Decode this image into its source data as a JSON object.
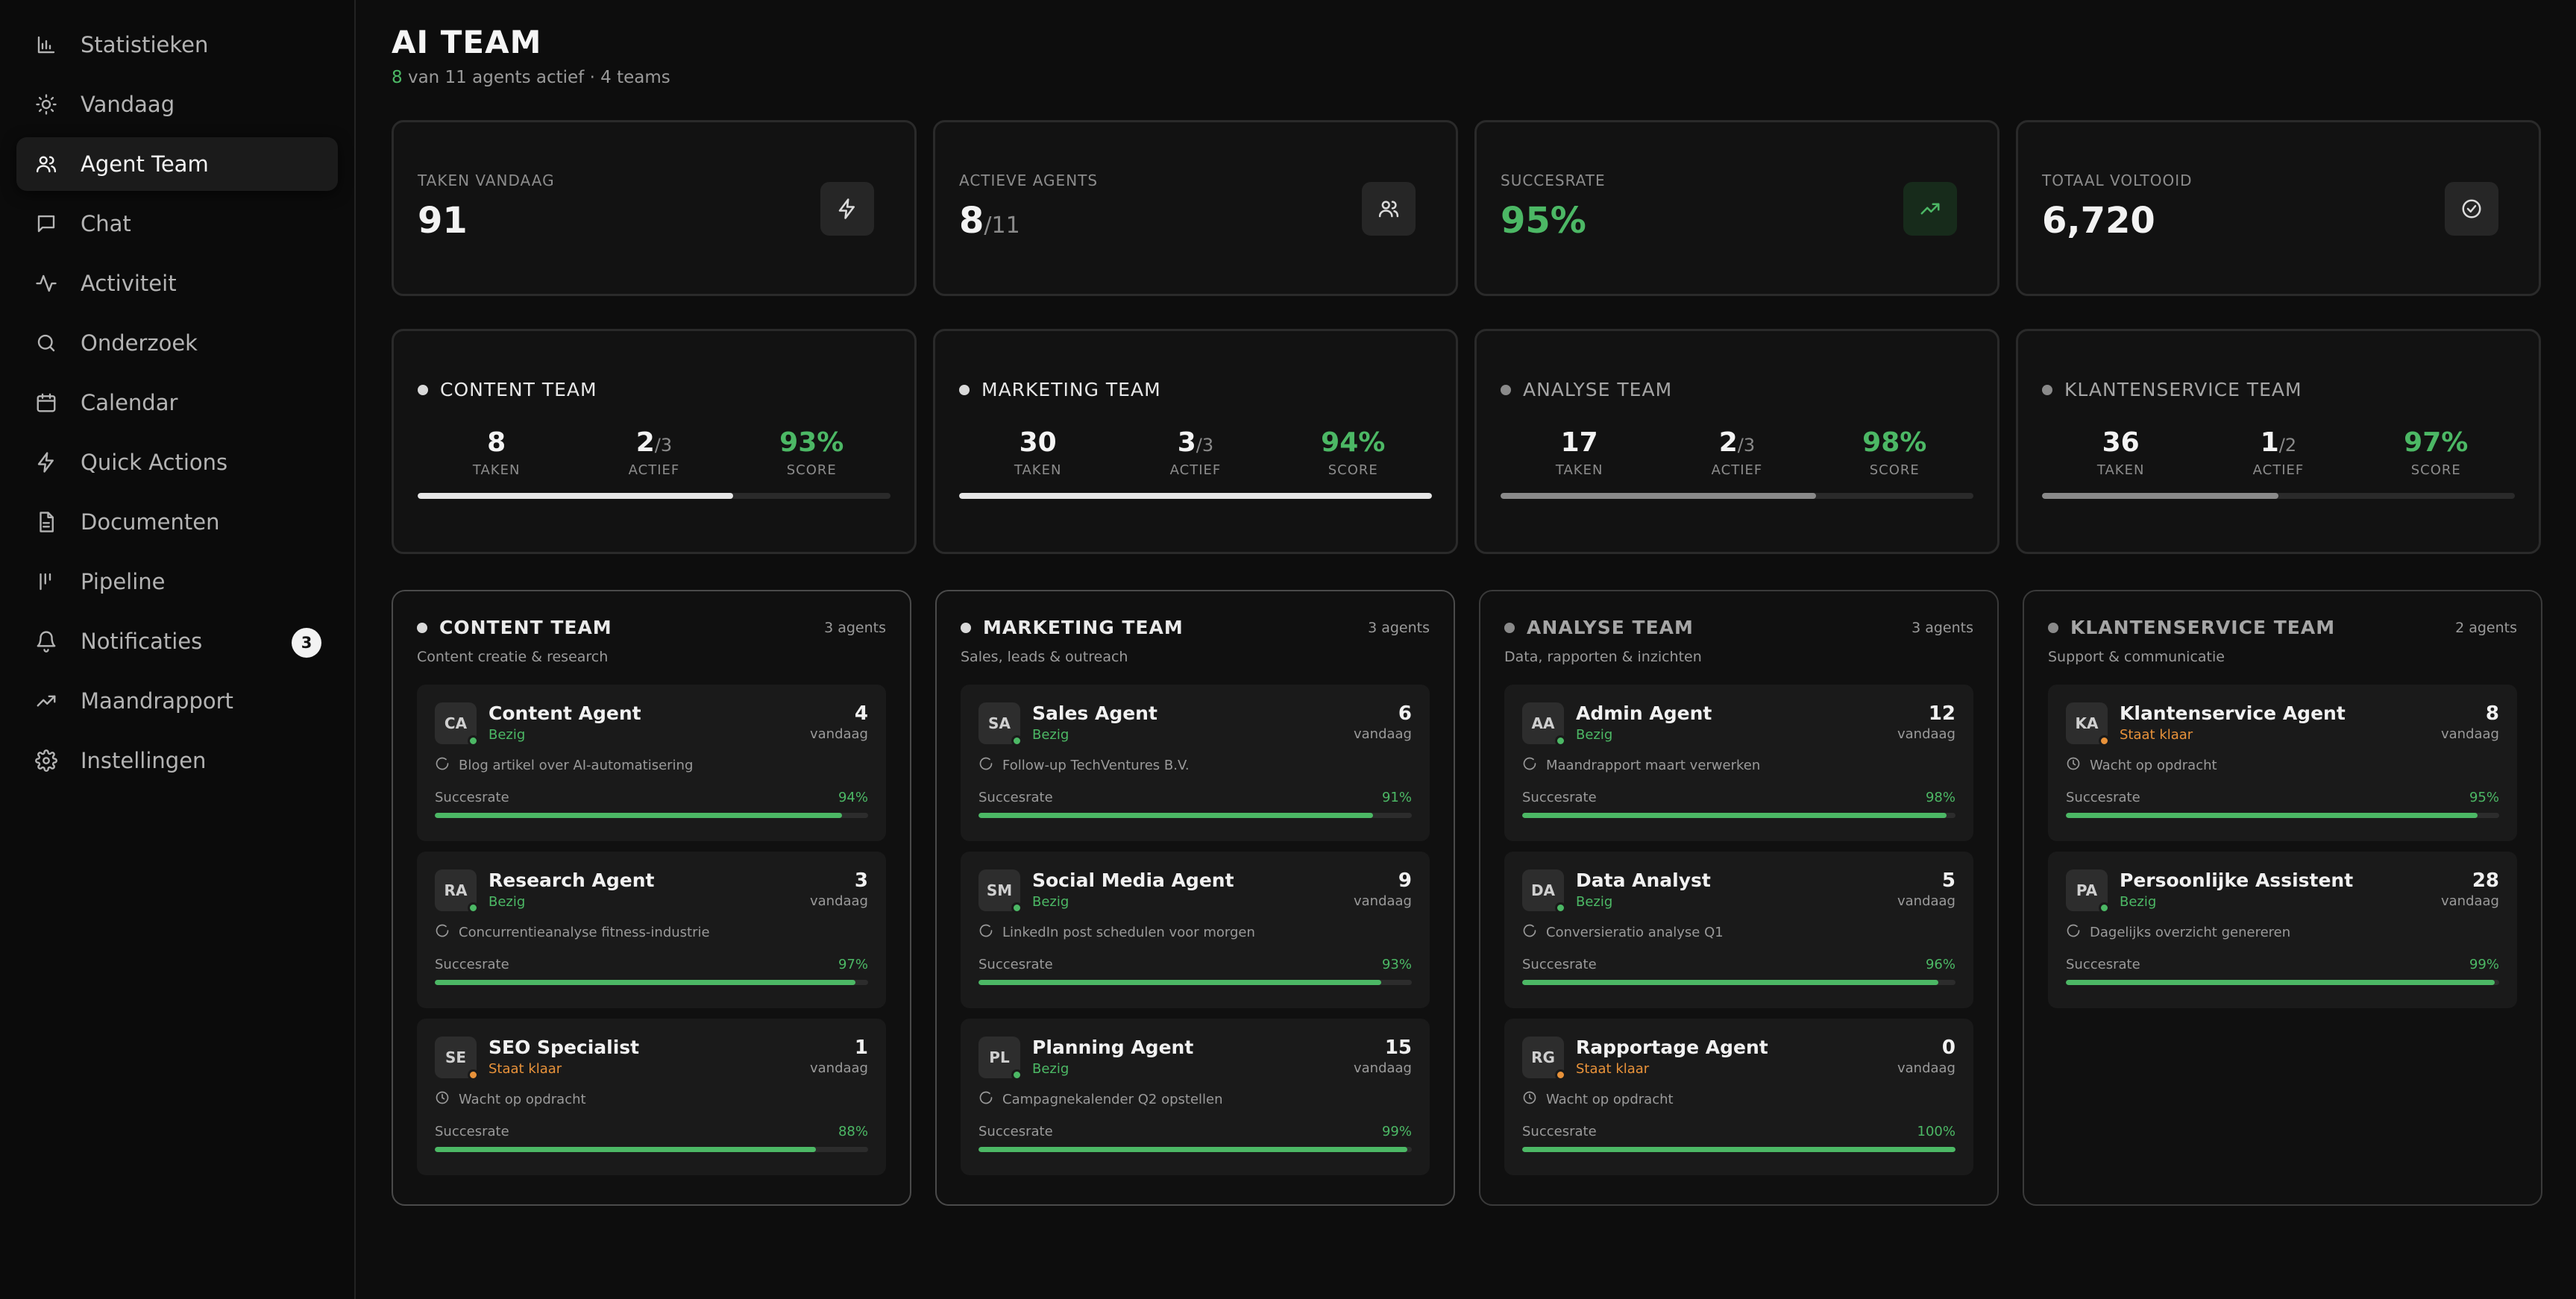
{
  "sidebar": {
    "items": [
      {
        "label": "Statistieken",
        "icon": "bar-chart-icon"
      },
      {
        "label": "Vandaag",
        "icon": "sun-icon"
      },
      {
        "label": "Agent Team",
        "icon": "users-icon",
        "active": true
      },
      {
        "label": "Chat",
        "icon": "chat-icon"
      },
      {
        "label": "Activiteit",
        "icon": "activity-icon"
      },
      {
        "label": "Onderzoek",
        "icon": "search-icon"
      },
      {
        "label": "Calendar",
        "icon": "calendar-icon"
      },
      {
        "label": "Quick Actions",
        "icon": "bolt-icon"
      },
      {
        "label": "Documenten",
        "icon": "document-icon"
      },
      {
        "label": "Pipeline",
        "icon": "pipeline-icon"
      },
      {
        "label": "Notificaties",
        "icon": "bell-icon",
        "badge": "3"
      },
      {
        "label": "Maandrapport",
        "icon": "trending-icon"
      },
      {
        "label": "Instellingen",
        "icon": "gear-icon"
      }
    ]
  },
  "header": {
    "title": "AI TEAM",
    "subtitle_active": "8",
    "subtitle_rest": " van 11 agents actief · 4 teams"
  },
  "stats": [
    {
      "label": "TAKEN VANDAAG",
      "value": "91",
      "sub": "",
      "icon": "bolt-icon"
    },
    {
      "label": "ACTIEVE AGENTS",
      "value": "8",
      "sub": "/11",
      "icon": "users-icon"
    },
    {
      "label": "SUCCESRATE",
      "value": "95%",
      "sub": "",
      "icon": "trending-icon",
      "accent": "#4cb865"
    },
    {
      "label": "TOTAAL VOLTOOID",
      "value": "6,720",
      "sub": "",
      "icon": "check-circle-icon"
    }
  ],
  "teams": [
    {
      "name": "CONTENT TEAM",
      "taken": "8",
      "actief": "2",
      "actief_sub": "/3",
      "score": "93%",
      "progress": 0.667
    },
    {
      "name": "MARKETING TEAM",
      "taken": "30",
      "actief": "3",
      "actief_sub": "/3",
      "score": "94%",
      "progress": 1.0
    },
    {
      "name": "ANALYSE TEAM",
      "taken": "17",
      "actief": "2",
      "actief_sub": "/3",
      "score": "98%",
      "progress": 0.667
    },
    {
      "name": "KLANTENSERVICE TEAM",
      "taken": "36",
      "actief": "1",
      "actief_sub": "/2",
      "score": "97%",
      "progress": 0.5
    }
  ],
  "metric_labels": {
    "taken": "TAKEN",
    "actief": "ACTIEF",
    "score": "SCORE"
  },
  "agent_labels": {
    "vandaag": "vandaag",
    "succesrate": "Succesrate"
  },
  "columns": [
    {
      "name": "CONTENT TEAM",
      "count": "3 agents",
      "desc": "Content creatie & research",
      "agents": [
        {
          "initials": "CA",
          "name": "Content Agent",
          "status": "Bezig",
          "state": "busy",
          "count": "4",
          "task": "Blog artikel over AI-automatisering",
          "rate": "94%",
          "rate_value": 0.94
        },
        {
          "initials": "RA",
          "name": "Research Agent",
          "status": "Bezig",
          "state": "busy",
          "count": "3",
          "task": "Concurrentieanalyse fitness-industrie",
          "rate": "97%",
          "rate_value": 0.97
        },
        {
          "initials": "SE",
          "name": "SEO Specialist",
          "status": "Staat klaar",
          "state": "ready",
          "count": "1",
          "task": "Wacht op opdracht",
          "rate": "88%",
          "rate_value": 0.88
        }
      ]
    },
    {
      "name": "MARKETING TEAM",
      "count": "3 agents",
      "desc": "Sales, leads & outreach",
      "agents": [
        {
          "initials": "SA",
          "name": "Sales Agent",
          "status": "Bezig",
          "state": "busy",
          "count": "6",
          "task": "Follow-up TechVentures B.V.",
          "rate": "91%",
          "rate_value": 0.91
        },
        {
          "initials": "SM",
          "name": "Social Media Agent",
          "status": "Bezig",
          "state": "busy",
          "count": "9",
          "task": "LinkedIn post schedulen voor morgen",
          "rate": "93%",
          "rate_value": 0.93
        },
        {
          "initials": "PL",
          "name": "Planning Agent",
          "status": "Bezig",
          "state": "busy",
          "count": "15",
          "task": "Campagnekalender Q2 opstellen",
          "rate": "99%",
          "rate_value": 0.99
        }
      ]
    },
    {
      "name": "ANALYSE TEAM",
      "count": "3 agents",
      "desc": "Data, rapporten & inzichten",
      "agents": [
        {
          "initials": "AA",
          "name": "Admin Agent",
          "status": "Bezig",
          "state": "busy",
          "count": "12",
          "task": "Maandrapport maart verwerken",
          "rate": "98%",
          "rate_value": 0.98
        },
        {
          "initials": "DA",
          "name": "Data Analyst",
          "status": "Bezig",
          "state": "busy",
          "count": "5",
          "task": "Conversieratio analyse Q1",
          "rate": "96%",
          "rate_value": 0.96
        },
        {
          "initials": "RG",
          "name": "Rapportage Agent",
          "status": "Staat klaar",
          "state": "ready",
          "count": "0",
          "task": "Wacht op opdracht",
          "rate": "100%",
          "rate_value": 1.0
        }
      ]
    },
    {
      "name": "KLANTENSERVICE TEAM",
      "count": "2 agents",
      "desc": "Support & communicatie",
      "agents": [
        {
          "initials": "KA",
          "name": "Klantenservice Agent",
          "status": "Staat klaar",
          "state": "ready",
          "count": "8",
          "task": "Wacht op opdracht",
          "rate": "95%",
          "rate_value": 0.95
        },
        {
          "initials": "PA",
          "name": "Persoonlijke Assistent",
          "status": "Bezig",
          "state": "busy",
          "count": "28",
          "task": "Dagelijks overzicht genereren",
          "rate": "99%",
          "rate_value": 0.99
        }
      ]
    }
  ]
}
